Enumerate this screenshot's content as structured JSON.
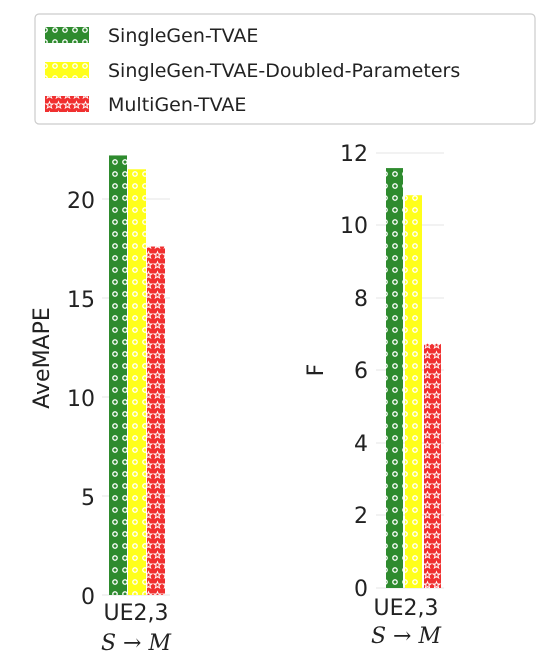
{
  "legend": {
    "location": "top-left",
    "items": [
      {
        "label": "SingleGen-TVAE",
        "color": "#2e8b2e",
        "pattern": "circles"
      },
      {
        "label": "SingleGen-TVAE-Doubled-Parameters",
        "color": "#ffff1a",
        "pattern": "circles"
      },
      {
        "label": "MultiGen-TVAE",
        "color": "#f03030",
        "pattern": "stars"
      }
    ]
  },
  "chart_data": [
    {
      "type": "bar",
      "categories": [
        "UE2,3"
      ],
      "category_sub": "S → M",
      "series": [
        {
          "name": "SingleGen-TVAE",
          "values": [
            22.2
          ]
        },
        {
          "name": "SingleGen-TVAE-Doubled-Parameters",
          "values": [
            21.5
          ]
        },
        {
          "name": "MultiGen-TVAE",
          "values": [
            17.6
          ]
        }
      ],
      "ylabel": "AveMAPE",
      "ylim": [
        0,
        22.2
      ],
      "yticks": [
        "0",
        "5",
        "10",
        "15",
        "20"
      ],
      "grid": false
    },
    {
      "type": "bar",
      "categories": [
        "UE2,3"
      ],
      "category_sub": "S → M",
      "series": [
        {
          "name": "SingleGen-TVAE",
          "values": [
            11.6
          ]
        },
        {
          "name": "SingleGen-TVAE-Doubled-Parameters",
          "values": [
            10.85
          ]
        },
        {
          "name": "MultiGen-TVAE",
          "values": [
            6.75
          ]
        }
      ],
      "ylabel": "F",
      "ylim": [
        0,
        11.6
      ],
      "yticks": [
        "0",
        "2",
        "4",
        "6",
        "8",
        "10",
        "12"
      ],
      "grid": false
    }
  ]
}
